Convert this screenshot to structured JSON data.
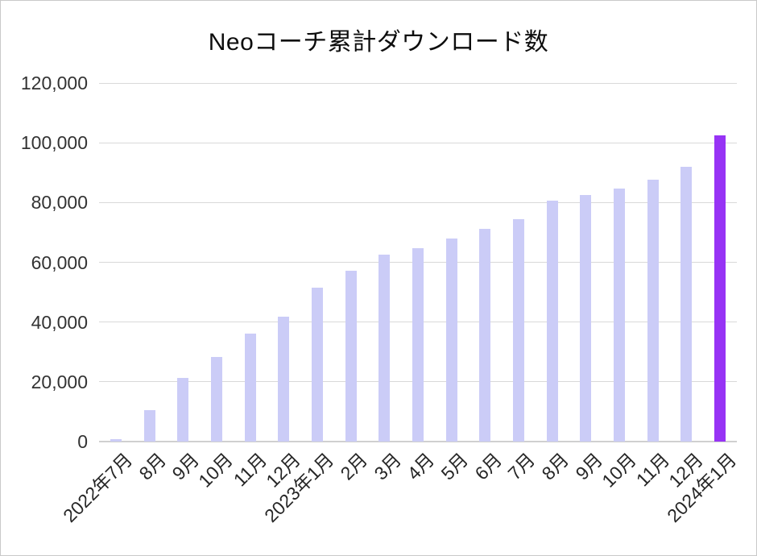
{
  "chart_data": {
    "type": "bar",
    "title": "Neoコーチ累計ダウンロード数",
    "categories": [
      "2022年7月",
      "8月",
      "9月",
      "10月",
      "11月",
      "12月",
      "2023年1月",
      "2月",
      "3月",
      "4月",
      "5月",
      "6月",
      "7月",
      "8月",
      "9月",
      "10月",
      "11月",
      "12月",
      "2024年1月"
    ],
    "values": [
      700,
      10500,
      21200,
      28400,
      36100,
      41700,
      51600,
      57300,
      62600,
      64800,
      68000,
      71200,
      74400,
      80700,
      82600,
      84800,
      87600,
      92000,
      102500
    ],
    "xlabel": "",
    "ylabel": "",
    "ylim": [
      0,
      120000
    ],
    "ytick_interval": 20000,
    "ytick_labels": [
      "0",
      "20,000",
      "40,000",
      "60,000",
      "80,000",
      "100,000",
      "120,000"
    ],
    "grid": true,
    "legend_position": "none",
    "highlight_index": 18,
    "bar_color_default": "#cbccf7",
    "bar_color_highlight": "#9733f5",
    "gridline_color": "#d9d9d9",
    "axis_line_color": "#d0d0d0"
  }
}
